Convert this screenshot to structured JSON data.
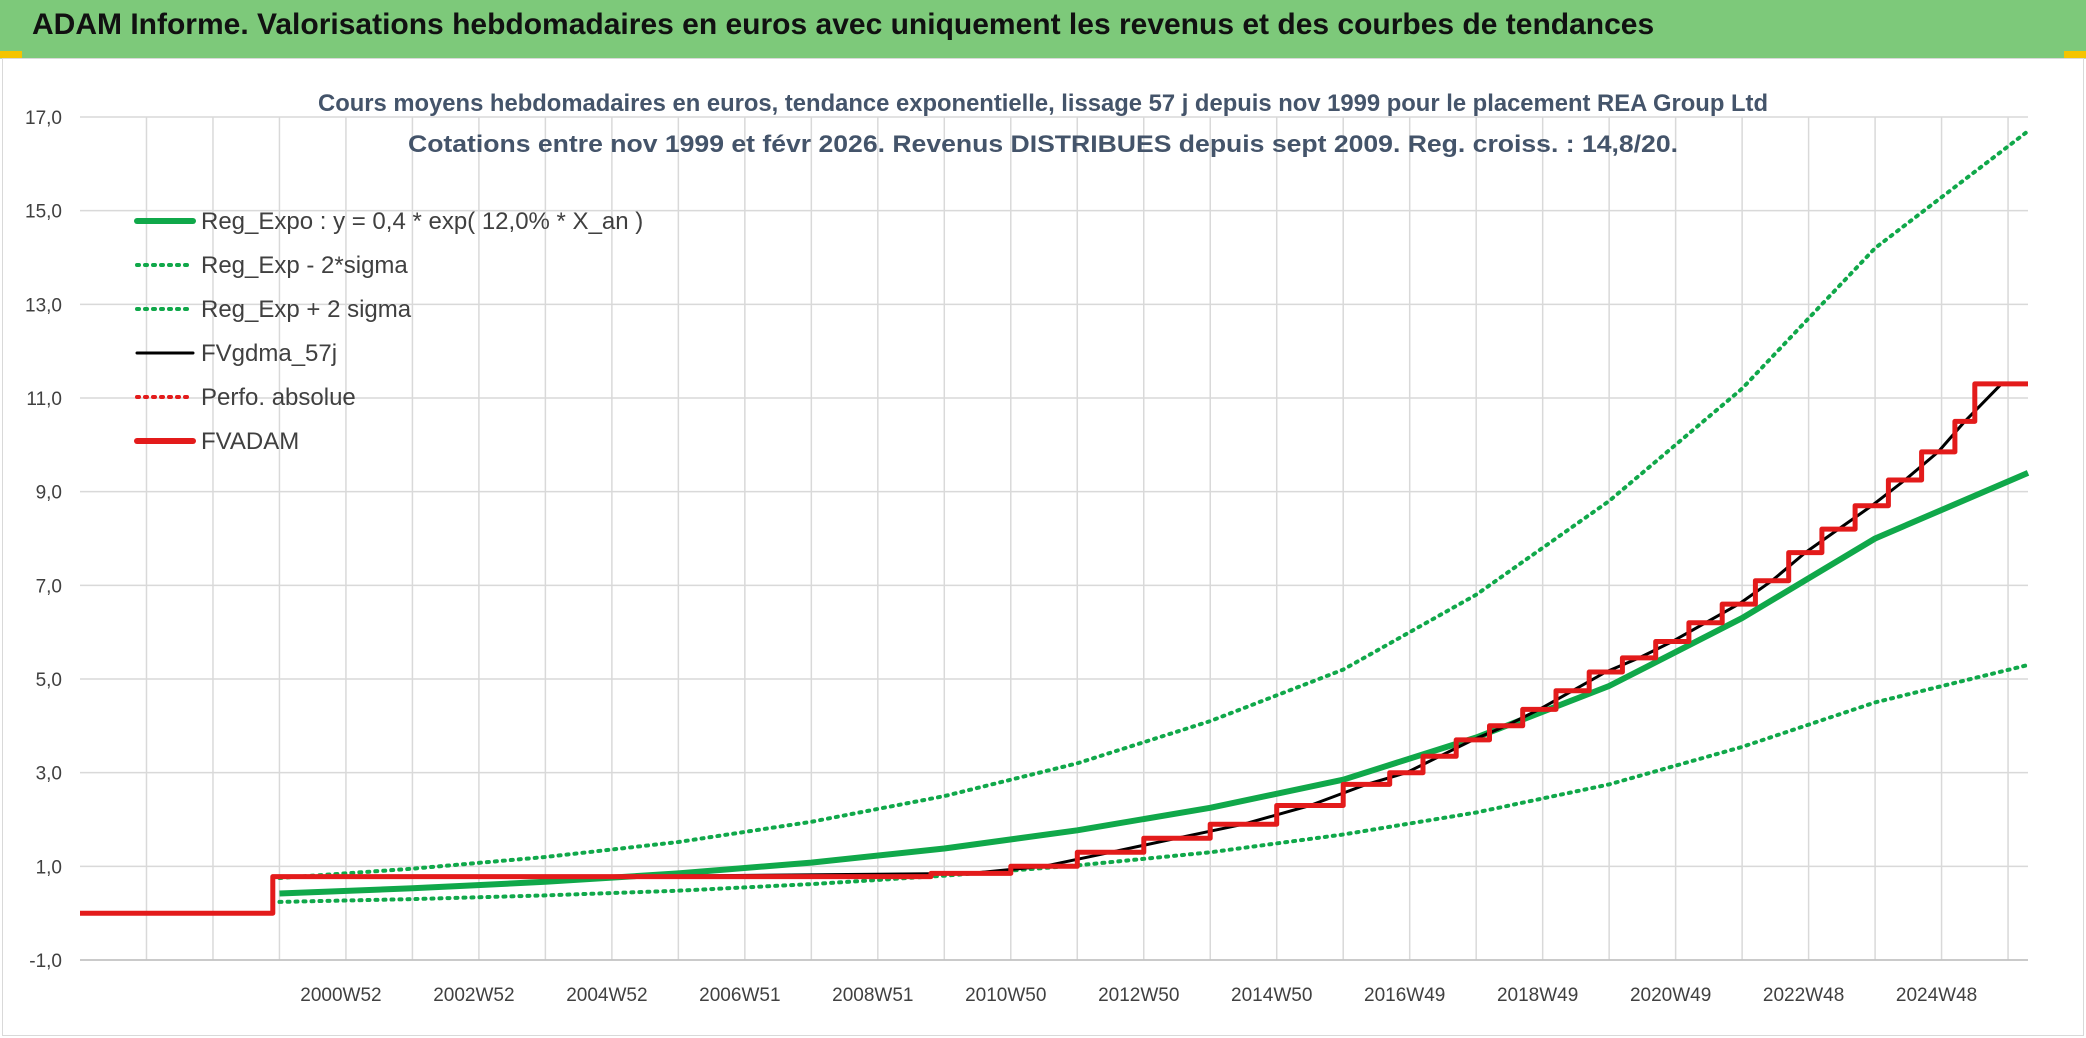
{
  "header": {
    "title": "ADAM Informe. Valorisations hebdomadaires en euros avec uniquement les revenus et des courbes de tendances"
  },
  "colors": {
    "banner": "#7dc97a",
    "green": "#10a84a",
    "black": "#000000",
    "red": "#e31b1b",
    "grid": "#d9d9d9"
  },
  "chart_data": {
    "type": "line",
    "title": "Cours moyens hebdomadaires en euros, tendance exponentielle, lissage 57 j depuis nov 1999 pour le placement REA Group Ltd",
    "subtitle": "Cotations entre nov 1999 et févr 2026. Revenus DISTRIBUES depuis sept 2009. Reg. croiss. : 14,8/20.",
    "xlabel": "",
    "ylabel": "",
    "xlim": [
      1997.0,
      2026.3
    ],
    "ylim": [
      -1,
      17
    ],
    "grid": true,
    "legend_position": "top-left",
    "y_ticks": [
      "-1,0",
      "1,0",
      "3,0",
      "5,0",
      "7,0",
      "9,0",
      "11,0",
      "13,0",
      "15,0",
      "17,0"
    ],
    "x_ticks": [
      {
        "label": "2000W52",
        "x": 2001.0
      },
      {
        "label": "2002W52",
        "x": 2003.0
      },
      {
        "label": "2004W52",
        "x": 2005.0
      },
      {
        "label": "2006W51",
        "x": 2007.0
      },
      {
        "label": "2008W51",
        "x": 2009.0
      },
      {
        "label": "2010W50",
        "x": 2011.0
      },
      {
        "label": "2012W50",
        "x": 2013.0
      },
      {
        "label": "2014W50",
        "x": 2015.0
      },
      {
        "label": "2016W49",
        "x": 2017.0
      },
      {
        "label": "2018W49",
        "x": 2019.0
      },
      {
        "label": "2020W49",
        "x": 2021.0
      },
      {
        "label": "2022W48",
        "x": 2023.0
      },
      {
        "label": "2024W48",
        "x": 2025.0
      }
    ],
    "legend": [
      {
        "name": "Reg_Expo : y = 0,4 * exp( 12,0% *  X_an )",
        "color": "#10a84a",
        "style": "solid-thick"
      },
      {
        "name": "Reg_Exp - 2*sigma",
        "color": "#10a84a",
        "style": "dotted"
      },
      {
        "name": "Reg_Exp + 2 sigma",
        "color": "#10a84a",
        "style": "dotted"
      },
      {
        "name": "FVgdma_57j",
        "color": "#000000",
        "style": "solid"
      },
      {
        "name": "Perfo. absolue",
        "color": "#e31b1b",
        "style": "dotted"
      },
      {
        "name": "FVADAM",
        "color": "#e31b1b",
        "style": "solid-thick"
      }
    ],
    "series": [
      {
        "name": "Reg_Expo",
        "x": [
          2000.0,
          2002,
          2004,
          2006,
          2008,
          2010,
          2012,
          2014,
          2016,
          2018,
          2020,
          2022,
          2024,
          2026.3
        ],
        "values": [
          0.42,
          0.53,
          0.67,
          0.85,
          1.08,
          1.38,
          1.77,
          2.25,
          2.85,
          3.75,
          4.85,
          6.3,
          8.0,
          9.4
        ]
      },
      {
        "name": "Reg_Exp - 2*sigma",
        "x": [
          2000.0,
          2002,
          2004,
          2006,
          2008,
          2010,
          2012,
          2014,
          2016,
          2018,
          2020,
          2022,
          2024,
          2026.3
        ],
        "values": [
          0.24,
          0.3,
          0.38,
          0.48,
          0.62,
          0.8,
          1.02,
          1.3,
          1.68,
          2.15,
          2.75,
          3.55,
          4.5,
          5.3
        ]
      },
      {
        "name": "Reg_Exp + 2 sigma",
        "x": [
          2000.0,
          2002,
          2004,
          2006,
          2008,
          2010,
          2012,
          2014,
          2016,
          2018,
          2020,
          2022,
          2024,
          2026.3
        ],
        "values": [
          0.75,
          0.95,
          1.2,
          1.52,
          1.95,
          2.5,
          3.2,
          4.1,
          5.2,
          6.8,
          8.8,
          11.2,
          14.2,
          16.7
        ]
      },
      {
        "name": "FVADAM",
        "x": [
          1997.0,
          1999.9,
          1999.9,
          2009.8,
          2009.8,
          2011.0,
          2011.0,
          2012.0,
          2012.0,
          2013.0,
          2013.0,
          2014.0,
          2014.0,
          2015.0,
          2015.0,
          2016.0,
          2016.0,
          2016.7,
          2016.7,
          2017.2,
          2017.2,
          2017.7,
          2017.7,
          2018.2,
          2018.2,
          2018.7,
          2018.7,
          2019.2,
          2019.2,
          2019.7,
          2019.7,
          2020.2,
          2020.2,
          2020.7,
          2020.7,
          2021.2,
          2021.2,
          2021.7,
          2021.7,
          2022.2,
          2022.2,
          2022.7,
          2022.7,
          2023.2,
          2023.2,
          2023.7,
          2023.7,
          2024.2,
          2024.2,
          2024.7,
          2024.7,
          2025.2,
          2025.2,
          2025.5,
          2025.5,
          2026.3
        ],
        "values": [
          0.0,
          0.0,
          0.78,
          0.78,
          0.85,
          0.85,
          1.0,
          1.0,
          1.3,
          1.3,
          1.6,
          1.6,
          1.9,
          1.9,
          2.3,
          2.3,
          2.75,
          2.75,
          3.0,
          3.0,
          3.35,
          3.35,
          3.7,
          3.7,
          4.0,
          4.0,
          4.35,
          4.35,
          4.75,
          4.75,
          5.15,
          5.15,
          5.45,
          5.45,
          5.8,
          5.8,
          6.2,
          6.2,
          6.6,
          6.6,
          7.1,
          7.1,
          7.7,
          7.7,
          8.2,
          8.2,
          8.7,
          8.7,
          9.25,
          9.25,
          9.85,
          9.85,
          10.5,
          10.5,
          11.3,
          11.3
        ]
      }
    ]
  }
}
